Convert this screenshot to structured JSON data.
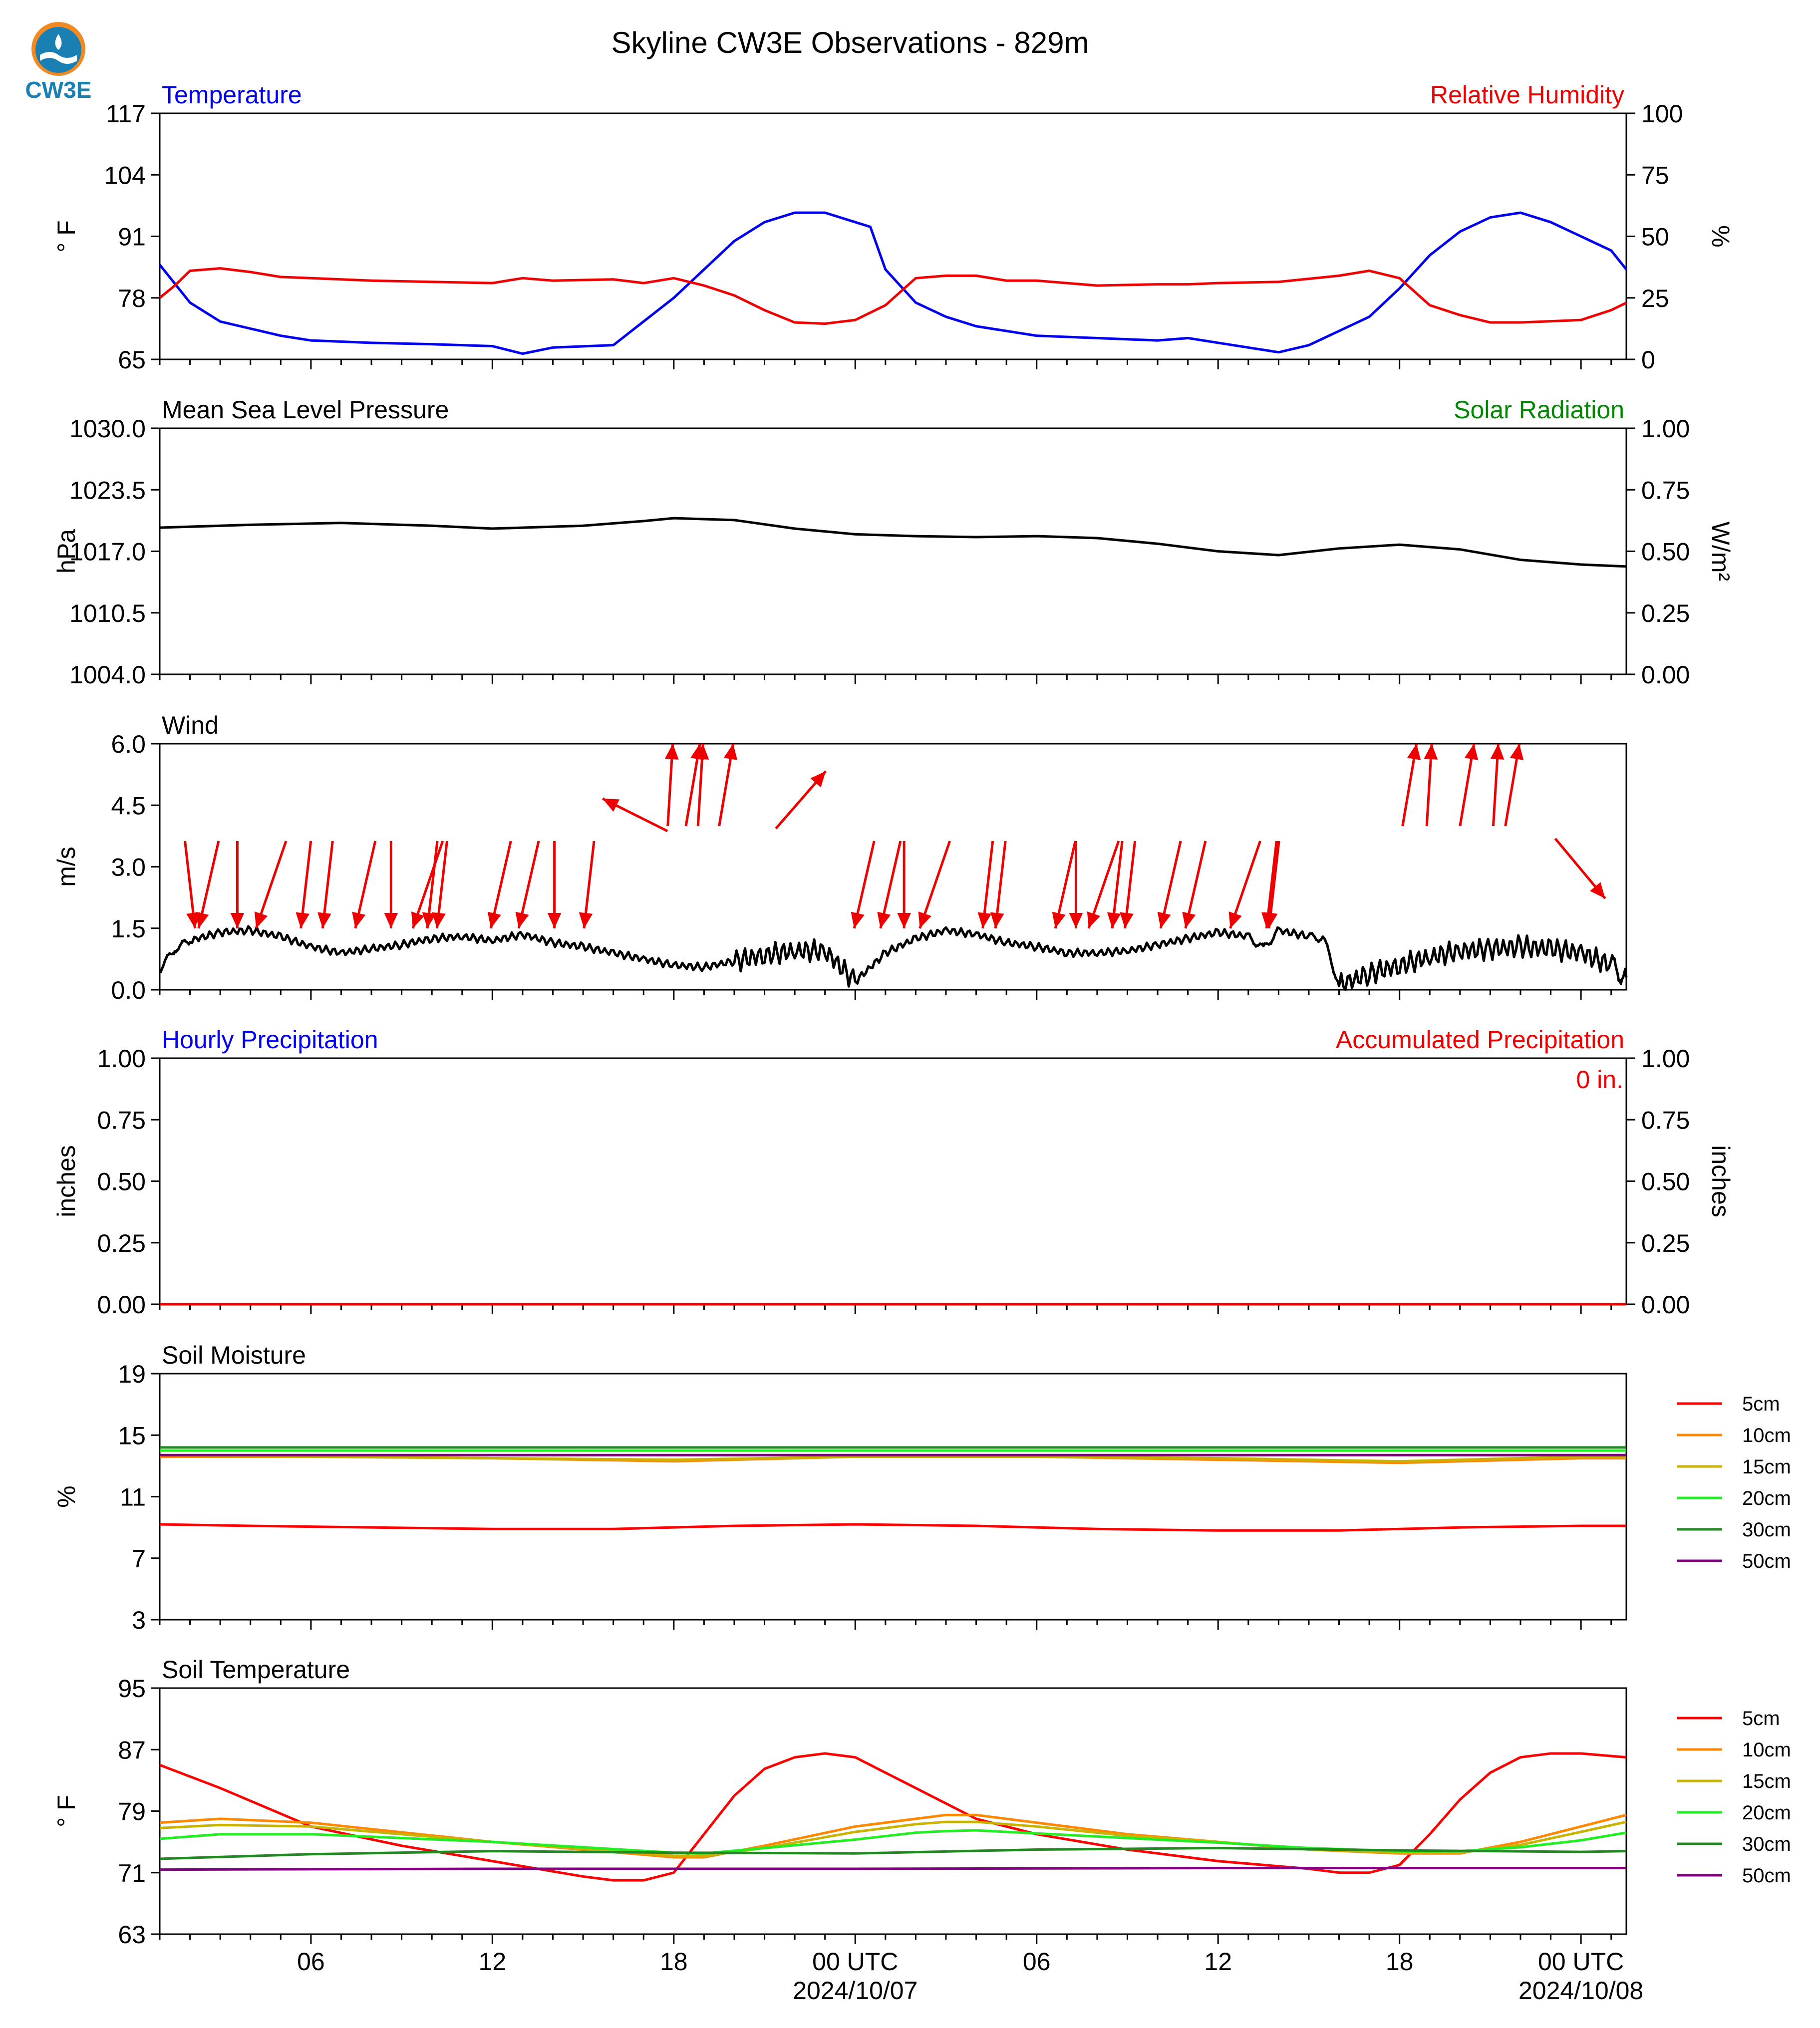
{
  "page": {
    "title": "Skyline CW3E Observations - 829m",
    "logo_text": "CW3E"
  },
  "colors": {
    "blue": "#0000ee",
    "red": "#ee0000",
    "green": "#008800",
    "black": "#000000",
    "soil": {
      "5cm": "#ff0000",
      "10cm": "#ff8800",
      "15cm": "#c8b400",
      "20cm": "#22ee22",
      "30cm": "#228822",
      "50cm": "#800080"
    }
  },
  "time_axis": {
    "range_hours": [
      -23,
      25.5
    ],
    "ticks": [
      {
        "h": -18,
        "label": "06",
        "sub": ""
      },
      {
        "h": -12,
        "label": "12",
        "sub": ""
      },
      {
        "h": -6,
        "label": "18",
        "sub": ""
      },
      {
        "h": 0,
        "label": "00 UTC",
        "sub": "2024/10/07"
      },
      {
        "h": 6,
        "label": "06",
        "sub": ""
      },
      {
        "h": 12,
        "label": "12",
        "sub": ""
      },
      {
        "h": 18,
        "label": "18",
        "sub": ""
      },
      {
        "h": 24,
        "label": "00 UTC",
        "sub": "2024/10/08"
      }
    ]
  },
  "chart_data": [
    {
      "type": "line",
      "id": "temperature",
      "left_title": "Temperature",
      "right_title": "Relative Humidity",
      "ylabel": "° F",
      "y2label": "%",
      "ylim": [
        65,
        117
      ],
      "yticks": [
        "65",
        "78",
        "91",
        "104",
        "117"
      ],
      "y2lim": [
        0,
        100
      ],
      "y2ticks": [
        "0",
        "25",
        "50",
        "75",
        "100"
      ],
      "series": [
        {
          "key": "temp",
          "axis": "left",
          "color_key": "blue",
          "x": [
            -23,
            -22,
            -21,
            -20,
            -19,
            -18,
            -16,
            -14,
            -12,
            -11,
            -10,
            -8,
            -7,
            -6,
            -5,
            -4,
            -3,
            -2,
            -1,
            0,
            0.5,
            1,
            2,
            3,
            4,
            5,
            6,
            8,
            10,
            11,
            12,
            13,
            14,
            15,
            16,
            17,
            18,
            19,
            20,
            21,
            22,
            23,
            24,
            25,
            25.5
          ],
          "y": [
            85,
            77,
            73,
            71.5,
            70,
            69,
            68.5,
            68.2,
            67.8,
            66.2,
            67.5,
            68,
            73,
            78,
            84,
            90,
            94,
            96,
            96,
            94,
            93,
            84,
            77,
            74,
            72,
            71,
            70,
            69.5,
            69,
            69.5,
            68.5,
            67.5,
            66.5,
            68,
            71,
            74,
            80,
            87,
            92,
            95,
            96,
            94,
            91,
            88,
            84
          ]
        },
        {
          "key": "rh",
          "axis": "right",
          "color_key": "red",
          "x": [
            -23,
            -22.5,
            -22,
            -21,
            -20,
            -19,
            -18,
            -16,
            -14,
            -12,
            -11,
            -10,
            -8,
            -7,
            -6,
            -5,
            -4,
            -3,
            -2,
            -1,
            0,
            1,
            2,
            3,
            4,
            5,
            6,
            8,
            10,
            11,
            12,
            14,
            16,
            17,
            18,
            19,
            20,
            21,
            22,
            23,
            24,
            25,
            25.5
          ],
          "y": [
            25,
            30,
            36,
            37,
            35.5,
            33.5,
            33,
            32,
            31.5,
            31,
            33,
            32,
            32.5,
            31,
            33,
            30,
            26,
            20,
            15,
            14.5,
            16,
            22,
            33,
            34,
            34,
            32,
            32,
            30,
            30.5,
            30.5,
            31,
            31.5,
            34,
            36,
            33,
            22,
            18,
            15,
            15,
            15.5,
            16,
            20,
            23
          ]
        }
      ]
    },
    {
      "type": "line",
      "id": "pressure",
      "left_title": "Mean Sea Level Pressure",
      "right_title": "Solar Radiation",
      "ylabel": "hPa",
      "y2label": "W/m²",
      "ylim": [
        1004,
        1030
      ],
      "yticks": [
        "1004.0",
        "1010.5",
        "1017.0",
        "1023.5",
        "1030.0"
      ],
      "y2lim": [
        0,
        1
      ],
      "y2ticks": [
        "0.00",
        "0.25",
        "0.50",
        "0.75",
        "1.00"
      ],
      "series": [
        {
          "key": "mslp",
          "axis": "left",
          "color_key": "black",
          "x": [
            -23,
            -20,
            -17,
            -14,
            -12,
            -9,
            -7,
            -6,
            -4,
            -2,
            0,
            2,
            4,
            6,
            8,
            10,
            12,
            14,
            16,
            18,
            20,
            22,
            24,
            25.5
          ],
          "y": [
            1019.5,
            1019.8,
            1020,
            1019.7,
            1019.4,
            1019.7,
            1020.2,
            1020.5,
            1020.3,
            1019.4,
            1018.8,
            1018.6,
            1018.5,
            1018.6,
            1018.4,
            1017.8,
            1017,
            1016.6,
            1017.3,
            1017.7,
            1017.2,
            1016.1,
            1015.6,
            1015.4
          ]
        }
      ]
    },
    {
      "type": "line",
      "id": "wind",
      "left_title": "Wind",
      "right_title": "",
      "ylabel": "m/s",
      "y2label": "",
      "ylim": [
        0,
        6
      ],
      "yticks": [
        "0.0",
        "1.5",
        "3.0",
        "4.5",
        "6.0"
      ],
      "series": [
        {
          "key": "wind_speed",
          "axis": "left",
          "color_key": "black",
          "x": [
            -23,
            -22.5,
            -22,
            -21,
            -20,
            -19,
            -18,
            -17,
            -16,
            -15,
            -14,
            -13,
            -12,
            -11,
            -10,
            -9,
            -8,
            -7,
            -6,
            -5,
            -4,
            -3,
            -2,
            -1,
            0,
            1,
            2,
            3,
            4,
            5,
            6,
            7,
            8,
            9,
            10,
            11,
            12,
            13,
            13.5,
            14,
            15,
            15.5,
            16,
            17,
            18,
            19,
            20,
            21,
            22,
            23,
            24,
            25,
            25.5
          ],
          "y": [
            0.5,
            1.0,
            1.2,
            1.4,
            1.45,
            1.3,
            1.05,
            0.9,
            1.0,
            1.1,
            1.25,
            1.3,
            1.2,
            1.35,
            1.15,
            1.05,
            0.9,
            0.75,
            0.6,
            0.55,
            0.7,
            0.85,
            0.95,
            0.95,
            0.2,
            0.9,
            1.25,
            1.45,
            1.35,
            1.15,
            1.05,
            0.9,
            0.9,
            0.95,
            1.1,
            1.25,
            1.4,
            1.3,
            1.0,
            1.45,
            1.3,
            1.25,
            0.1,
            0.4,
            0.6,
            0.8,
            0.95,
            1.0,
            1.05,
            1.0,
            0.9,
            0.6,
            0.3
          ]
        },
        {
          "key": "wind_barbs",
          "type": "arrows",
          "x": [
            -22,
            -21.5,
            -20.5,
            -19.5,
            -18.3,
            -17.2,
            -16.4,
            -15.5,
            -14.4,
            -14.2,
            -13.5,
            -12,
            -10.7,
            -9.8,
            -9.1,
            -7.2,
            -6.2,
            -5.6,
            -5.2,
            -4.5,
            -1.8,
            -0.15,
            1.1,
            1.6,
            2.5,
            4.3,
            5.1,
            6.8,
            7.2,
            8,
            8.5,
            9.3,
            10.2,
            11.4,
            12.6,
            13.6,
            13.9,
            18.1,
            18.9,
            20,
            21.1,
            21.5,
            24.8
          ],
          "note": "arrows drawn along upper plot, red"
        }
      ]
    },
    {
      "type": "line",
      "id": "precip",
      "left_title": "Hourly Precipitation",
      "right_title": "Accumulated Precipitation",
      "ylabel": "inches",
      "y2label": "inches",
      "ylim": [
        0,
        1
      ],
      "yticks": [
        "0.00",
        "0.25",
        "0.50",
        "0.75",
        "1.00"
      ],
      "y2ticks": [
        "0.00",
        "0.25",
        "0.50",
        "0.75",
        "1.00"
      ],
      "annotation": "0 in.",
      "series": [
        {
          "key": "hourly",
          "axis": "left",
          "color_key": "blue",
          "x": [
            -23,
            25.5
          ],
          "y": [
            0,
            0
          ]
        },
        {
          "key": "accum",
          "axis": "right",
          "color_key": "red",
          "x": [
            -23,
            25.5
          ],
          "y": [
            0,
            0
          ]
        }
      ]
    },
    {
      "type": "line",
      "id": "soil_moisture",
      "left_title": "Soil Moisture",
      "right_title": "",
      "ylabel": "%",
      "y2label": "",
      "ylim": [
        3,
        19
      ],
      "yticks": [
        "3",
        "7",
        "11",
        "15",
        "19"
      ],
      "legend": [
        "5cm",
        "10cm",
        "15cm",
        "20cm",
        "30cm",
        "50cm"
      ],
      "series": [
        {
          "name": "5cm",
          "x": [
            -23,
            -20,
            -16,
            -12,
            -8,
            -4,
            0,
            4,
            8,
            12,
            16,
            20,
            24,
            25.5
          ],
          "y": [
            9.2,
            9.1,
            9.0,
            8.9,
            8.9,
            9.1,
            9.2,
            9.1,
            8.9,
            8.8,
            8.8,
            9.0,
            9.1,
            9.1
          ]
        },
        {
          "name": "10cm",
          "x": [
            -23,
            -18,
            -12,
            -6,
            0,
            6,
            12,
            18,
            24,
            25.5
          ],
          "y": [
            13.6,
            13.6,
            13.5,
            13.3,
            13.6,
            13.6,
            13.4,
            13.2,
            13.5,
            13.5
          ]
        },
        {
          "name": "15cm",
          "x": [
            -23,
            -18,
            -12,
            -6,
            0,
            6,
            12,
            18,
            24,
            25.5
          ],
          "y": [
            13.7,
            13.6,
            13.5,
            13.4,
            13.6,
            13.6,
            13.5,
            13.3,
            13.6,
            13.6
          ]
        },
        {
          "name": "20cm",
          "x": [
            -23,
            0,
            25.5
          ],
          "y": [
            14.0,
            14.0,
            14.0
          ]
        },
        {
          "name": "30cm",
          "x": [
            -23,
            0,
            25.5
          ],
          "y": [
            14.2,
            14.2,
            14.2
          ]
        },
        {
          "name": "50cm",
          "x": [
            -23,
            0,
            25.5
          ],
          "y": [
            13.7,
            13.7,
            13.7
          ]
        }
      ]
    },
    {
      "type": "line",
      "id": "soil_temperature",
      "left_title": "Soil Temperature",
      "right_title": "",
      "ylabel": "° F",
      "y2label": "",
      "ylim": [
        63,
        95
      ],
      "yticks": [
        "63",
        "71",
        "79",
        "87",
        "95"
      ],
      "legend": [
        "5cm",
        "10cm",
        "15cm",
        "20cm",
        "30cm",
        "50cm"
      ],
      "series": [
        {
          "name": "5cm",
          "x": [
            -23,
            -21,
            -18,
            -15,
            -12,
            -9,
            -8,
            -7,
            -6,
            -5,
            -4,
            -3,
            -2,
            -1,
            0,
            1,
            2,
            3,
            4,
            6,
            9,
            12,
            15,
            16,
            17,
            18,
            19,
            20,
            21,
            22,
            23,
            24,
            25.5
          ],
          "y": [
            85,
            82,
            77,
            74.5,
            72.5,
            70.5,
            70,
            70,
            71,
            76,
            81,
            84.5,
            86,
            86.5,
            86,
            84,
            82,
            80,
            78,
            76,
            74,
            72.5,
            71.5,
            71,
            71,
            72,
            76,
            80.5,
            84,
            86,
            86.5,
            86.5,
            86
          ]
        },
        {
          "name": "10cm",
          "x": [
            -23,
            -21,
            -18,
            -12,
            -6,
            -5,
            -3,
            0,
            2,
            3,
            4,
            6,
            9,
            12,
            15,
            18,
            20,
            22,
            24,
            25.5
          ],
          "y": [
            77.5,
            78,
            77.5,
            75,
            73,
            73,
            74.5,
            77,
            78,
            78.5,
            78.5,
            77.5,
            76,
            75,
            74,
            73.5,
            73.5,
            75,
            77,
            78.5
          ]
        },
        {
          "name": "15cm",
          "x": [
            -23,
            -21,
            -18,
            -12,
            -6,
            -5,
            -3,
            0,
            2,
            3,
            4,
            6,
            9,
            12,
            15,
            18,
            20,
            22,
            24,
            25.5
          ],
          "y": [
            76.8,
            77.2,
            77,
            75,
            73.2,
            73.2,
            74.2,
            76.3,
            77.3,
            77.6,
            77.6,
            77,
            75.8,
            75,
            74,
            73.6,
            73.6,
            74.6,
            76.3,
            77.6
          ]
        },
        {
          "name": "20cm",
          "x": [
            -23,
            -21,
            -18,
            -12,
            -6,
            -5,
            -3,
            0,
            2,
            3,
            4,
            6,
            9,
            12,
            15,
            18,
            20,
            22,
            24,
            25.5
          ],
          "y": [
            75.4,
            76,
            76,
            75,
            73.6,
            73.5,
            74.2,
            75.3,
            76.2,
            76.4,
            76.5,
            76.1,
            75.5,
            74.9,
            74.2,
            73.8,
            73.8,
            74.3,
            75.2,
            76.2
          ]
        },
        {
          "name": "30cm",
          "x": [
            -23,
            -18,
            -12,
            -6,
            0,
            6,
            12,
            18,
            24,
            25.5
          ],
          "y": [
            72.8,
            73.4,
            73.8,
            73.6,
            73.5,
            74,
            74.2,
            73.9,
            73.7,
            73.8
          ]
        },
        {
          "name": "50cm",
          "x": [
            -23,
            -12,
            0,
            12,
            25.5
          ],
          "y": [
            71.4,
            71.5,
            71.5,
            71.6,
            71.6
          ]
        }
      ]
    }
  ]
}
